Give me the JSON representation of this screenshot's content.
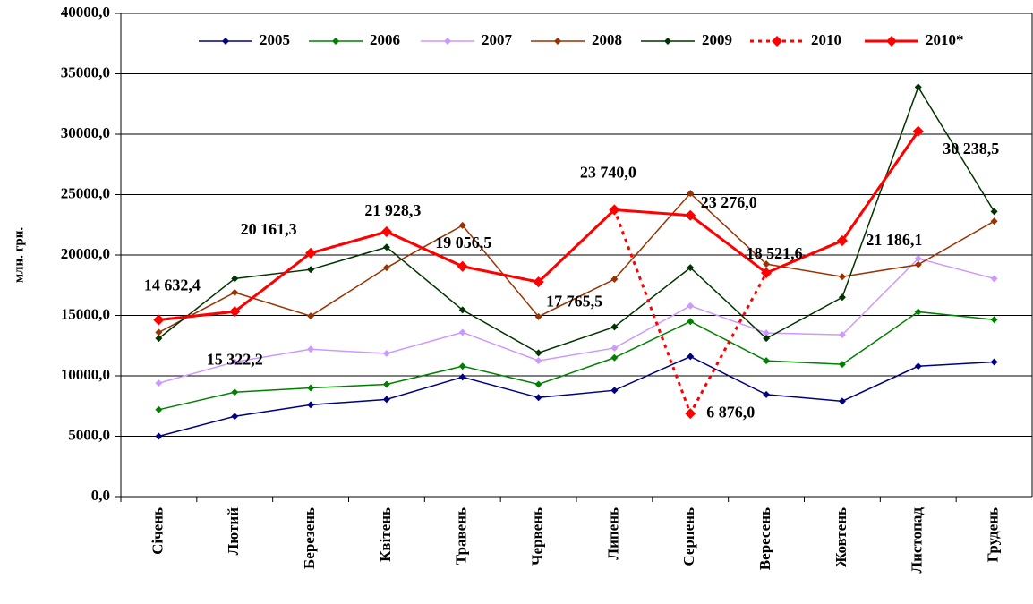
{
  "chart_data": {
    "type": "line",
    "y_label": "млн. грн.",
    "categories": [
      "Січень",
      "Лютий",
      "Березень",
      "Квітень",
      "Травень",
      "Червень",
      "Липень",
      "Серпень",
      "Вересень",
      "Жовтень",
      "Листопад",
      "Грудень"
    ],
    "ylim": [
      0,
      40000
    ],
    "yticks": [
      {
        "value": 0,
        "label": "0,0"
      },
      {
        "value": 5000,
        "label": "5000,0"
      },
      {
        "value": 10000,
        "label": "10000,0"
      },
      {
        "value": 15000,
        "label": "15000,0"
      },
      {
        "value": 20000,
        "label": "20000,0"
      },
      {
        "value": 25000,
        "label": "25000,0"
      },
      {
        "value": 30000,
        "label": "30000,0"
      },
      {
        "value": 35000,
        "label": "35000,0"
      },
      {
        "value": 40000,
        "label": "40000,0"
      }
    ],
    "grid": true,
    "legend": "top",
    "series": [
      {
        "name": "2005",
        "color": "#000080",
        "values": [
          5000,
          6650,
          7600,
          8050,
          9900,
          8200,
          8800,
          11600,
          8450,
          7900,
          10800,
          11150
        ]
      },
      {
        "name": "2006",
        "color": "#008000",
        "values": [
          7200,
          8650,
          9000,
          9300,
          10800,
          9300,
          11500,
          14500,
          11250,
          10950,
          15300,
          14650
        ]
      },
      {
        "name": "2007",
        "color": "#cc99ff",
        "values": [
          9400,
          11150,
          12200,
          11850,
          13600,
          11250,
          12300,
          15800,
          13550,
          13400,
          19700,
          18050
        ]
      },
      {
        "name": "2008",
        "color": "#993300",
        "values": [
          13600,
          16900,
          14950,
          18950,
          22450,
          14900,
          18000,
          25100,
          19250,
          18200,
          19200,
          22800
        ]
      },
      {
        "name": "2009",
        "color": "#003300",
        "values": [
          13100,
          18050,
          18800,
          20650,
          15450,
          11900,
          14050,
          18950,
          13100,
          16500,
          33900,
          23600
        ]
      },
      {
        "name": "2010",
        "color": "#ff0000",
        "line_style": "dashed",
        "values": [
          14632.4,
          15322.2,
          20161.3,
          21928.3,
          19056.5,
          17765.5,
          23740.0,
          6876.0,
          18521.6,
          21186.1,
          30238.5,
          null
        ],
        "value_labels": [
          null,
          null,
          null,
          null,
          null,
          null,
          null,
          "6 876,0",
          null,
          null,
          null,
          null
        ]
      },
      {
        "name": "2010*",
        "color": "#ff0000",
        "line_style": "solid",
        "values": [
          14632.4,
          15322.2,
          20161.3,
          21928.3,
          19056.5,
          17765.5,
          23740.0,
          23276.0,
          18521.6,
          21186.1,
          30238.5,
          null
        ],
        "value_labels": [
          "14 632,4",
          "15 322,2",
          "20 161,3",
          "21 928,3",
          "19 056,5",
          "17 765,5",
          "23 740,0",
          "23 276,0",
          "18 521,6",
          "21 186,1",
          "30 238,5",
          null
        ]
      }
    ]
  }
}
